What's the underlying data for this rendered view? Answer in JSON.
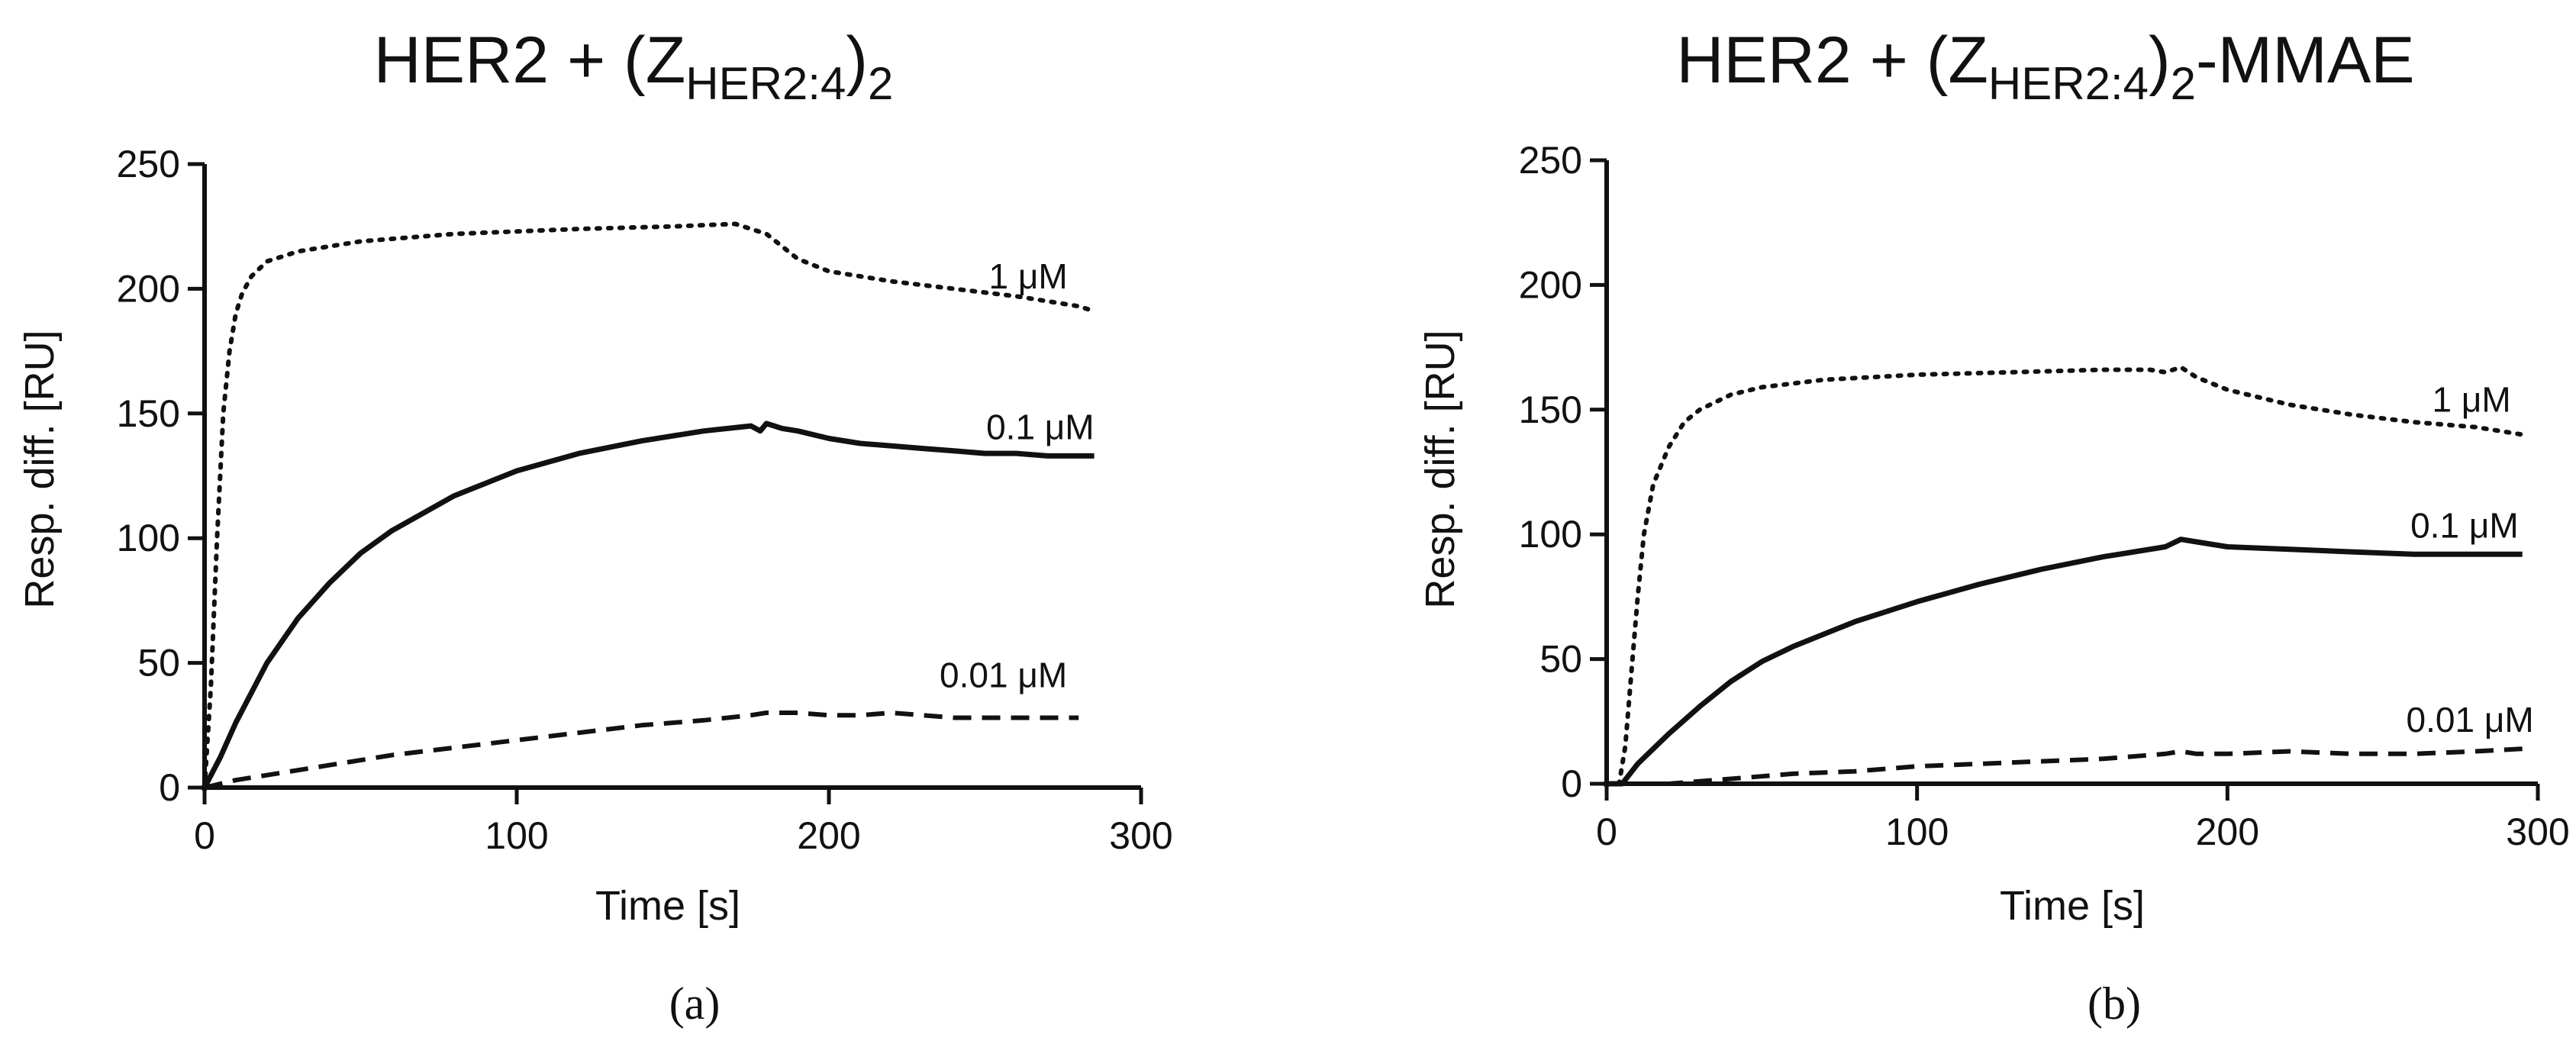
{
  "chart_data": [
    {
      "type": "line",
      "title_main": "HER2 + (Z",
      "title_sub": "HER2:4",
      "title_close": ")",
      "title_sub2": "2",
      "title_suffix": "",
      "panel_label": "(a)",
      "xlabel": "Time [s]",
      "ylabel": "Resp. diff. [RU]",
      "xlim": [
        0,
        300
      ],
      "ylim": [
        0,
        250
      ],
      "xticks": [
        0,
        100,
        200,
        300
      ],
      "yticks": [
        0,
        50,
        100,
        150,
        200,
        250
      ],
      "series": [
        {
          "label": "1 μM",
          "style": "dotted",
          "x": [
            0,
            2,
            4,
            6,
            8,
            10,
            12,
            15,
            20,
            30,
            50,
            80,
            120,
            150,
            170,
            180,
            190,
            200,
            220,
            240,
            260,
            270,
            280,
            285
          ],
          "y": [
            0,
            40,
            100,
            150,
            175,
            190,
            198,
            205,
            211,
            215,
            219,
            222,
            224,
            225,
            226,
            222,
            212,
            207,
            203,
            200,
            197,
            195,
            193,
            191
          ]
        },
        {
          "label": "0.1 μM",
          "style": "solid",
          "x": [
            0,
            5,
            10,
            20,
            30,
            40,
            50,
            60,
            80,
            100,
            120,
            140,
            160,
            175,
            178,
            180,
            185,
            190,
            200,
            210,
            220,
            230,
            240,
            250,
            260,
            270,
            280,
            285
          ],
          "y": [
            0,
            12,
            26,
            50,
            68,
            82,
            94,
            103,
            117,
            127,
            134,
            139,
            143,
            145,
            143,
            146,
            144,
            143,
            140,
            138,
            137,
            136,
            135,
            134,
            134,
            133,
            133,
            133
          ]
        },
        {
          "label": "0.01 μM",
          "style": "dashed",
          "x": [
            0,
            10,
            20,
            40,
            60,
            80,
            100,
            120,
            140,
            160,
            175,
            180,
            190,
            200,
            210,
            220,
            230,
            240,
            260,
            280
          ],
          "y": [
            0,
            3,
            5,
            9,
            13,
            16,
            19,
            22,
            25,
            27,
            29,
            30,
            30,
            29,
            29,
            30,
            29,
            28,
            28,
            28
          ]
        }
      ]
    },
    {
      "type": "line",
      "title_main": "HER2 + (Z",
      "title_sub": "HER2:4",
      "title_close": ")",
      "title_sub2": "2",
      "title_suffix": "-MMAE",
      "panel_label": "(b)",
      "xlabel": "Time [s]",
      "ylabel": "Resp. diff. [RU]",
      "xlim": [
        0,
        300
      ],
      "ylim": [
        0,
        250
      ],
      "xticks": [
        0,
        100,
        200,
        300
      ],
      "yticks": [
        0,
        50,
        100,
        150,
        200,
        250
      ],
      "series": [
        {
          "label": "1 μM",
          "style": "dotted",
          "x": [
            0,
            4,
            6,
            8,
            10,
            12,
            15,
            20,
            25,
            30,
            40,
            50,
            70,
            100,
            130,
            160,
            175,
            180,
            185,
            190,
            200,
            220,
            240,
            260,
            280,
            295
          ],
          "y": [
            0,
            0,
            15,
            45,
            75,
            100,
            120,
            135,
            145,
            150,
            156,
            159,
            162,
            164,
            165,
            166,
            166,
            165,
            167,
            163,
            158,
            152,
            148,
            145,
            143,
            140
          ]
        },
        {
          "label": "0.1 μM",
          "style": "solid",
          "x": [
            0,
            5,
            10,
            20,
            30,
            40,
            50,
            60,
            80,
            100,
            120,
            140,
            160,
            180,
            185,
            190,
            200,
            220,
            240,
            260,
            280,
            295
          ],
          "y": [
            0,
            0,
            8,
            20,
            31,
            41,
            49,
            55,
            65,
            73,
            80,
            86,
            91,
            95,
            98,
            97,
            95,
            94,
            93,
            92,
            92,
            92
          ]
        },
        {
          "label": "0.01 μM",
          "style": "dashed",
          "x": [
            0,
            20,
            40,
            60,
            80,
            100,
            120,
            140,
            160,
            180,
            185,
            190,
            200,
            220,
            240,
            260,
            280,
            295
          ],
          "y": [
            0,
            0,
            2,
            4,
            5,
            7,
            8,
            9,
            10,
            12,
            13,
            12,
            12,
            13,
            12,
            12,
            13,
            14
          ]
        }
      ]
    }
  ]
}
